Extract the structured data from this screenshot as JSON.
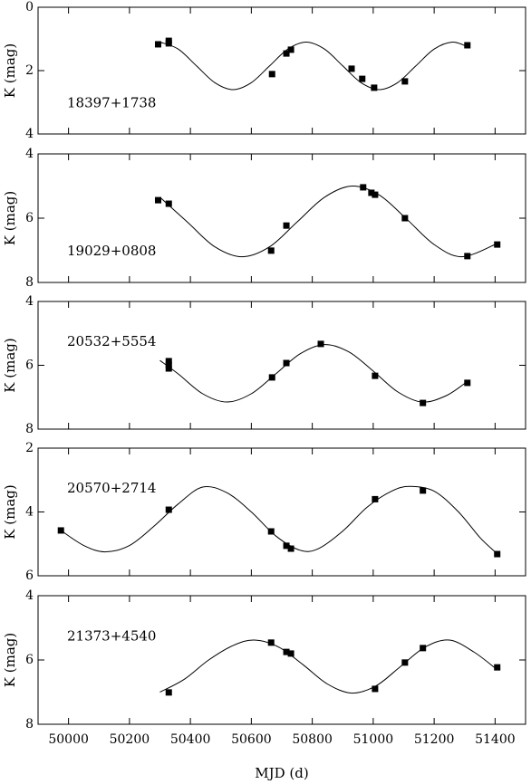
{
  "chart_data": [
    {
      "type": "scatter",
      "title": "18397+1738",
      "y_label": "K (mag)",
      "ylim": [
        0,
        4
      ],
      "y_inverted": true,
      "yticks": [
        0,
        2,
        4
      ],
      "points": {
        "x": [
          50294,
          50329,
          50329,
          50668,
          50715,
          50730,
          50929,
          50964,
          51003,
          51104,
          51309
        ],
        "values": [
          1.17,
          1.06,
          1.14,
          2.11,
          1.46,
          1.34,
          1.94,
          2.26,
          2.54,
          2.34,
          1.2
        ]
      },
      "curve": {
        "x": [
          50300,
          50360,
          50420,
          50480,
          50540,
          50600,
          50660,
          50720,
          50780,
          50840,
          50900,
          50960,
          51020,
          51080,
          51140,
          51200,
          51260,
          51310
        ],
        "values": [
          1.1,
          1.32,
          1.85,
          2.38,
          2.6,
          2.38,
          1.85,
          1.32,
          1.1,
          1.32,
          1.85,
          2.38,
          2.6,
          2.38,
          1.85,
          1.32,
          1.1,
          1.25
        ]
      }
    },
    {
      "type": "scatter",
      "title": "19029+0808",
      "y_label": "K (mag)",
      "ylim": [
        4,
        8
      ],
      "y_inverted": true,
      "yticks": [
        4,
        6,
        8
      ],
      "points": {
        "x": [
          50294,
          50329,
          50665,
          50715,
          50967,
          50994,
          51006,
          51104,
          51309,
          51407
        ],
        "values": [
          5.44,
          5.55,
          7.01,
          6.23,
          5.04,
          5.21,
          5.27,
          6.0,
          7.18,
          6.82
        ]
      },
      "curve": {
        "x": [
          50300,
          50390,
          50480,
          50570,
          50660,
          50750,
          50840,
          50930,
          51020,
          51110,
          51200,
          51290,
          51400
        ],
        "values": [
          5.35,
          6.12,
          6.89,
          7.2,
          6.89,
          6.12,
          5.35,
          5.0,
          5.28,
          6.03,
          6.82,
          7.2,
          6.82
        ]
      }
    },
    {
      "type": "scatter",
      "title": "20532+5554",
      "y_label": "K (mag)",
      "ylim": [
        4,
        8
      ],
      "y_inverted": true,
      "yticks": [
        4,
        6,
        8
      ],
      "points": {
        "x": [
          50329,
          50329,
          50329,
          50668,
          50715,
          50828,
          51006,
          51163,
          51309
        ],
        "values": [
          5.87,
          5.99,
          6.1,
          6.38,
          5.93,
          5.33,
          6.33,
          7.18,
          6.55
        ]
      },
      "curve": {
        "x": [
          50300,
          50360,
          50440,
          50520,
          50600,
          50680,
          50760,
          50840,
          50920,
          51000,
          51080,
          51160,
          51240,
          51310
        ],
        "values": [
          5.85,
          6.27,
          6.89,
          7.15,
          6.89,
          6.27,
          5.64,
          5.35,
          5.58,
          6.18,
          6.83,
          7.15,
          6.95,
          6.5
        ]
      }
    },
    {
      "type": "scatter",
      "title": "20570+2714",
      "y_label": "K (mag)",
      "ylim": [
        2,
        6
      ],
      "y_inverted": true,
      "yticks": [
        2,
        4,
        6
      ],
      "points": {
        "x": [
          49975,
          50329,
          50665,
          50715,
          50730,
          51006,
          51163,
          51407
        ],
        "values": [
          4.58,
          3.93,
          4.61,
          5.06,
          5.15,
          3.6,
          3.33,
          5.32
        ]
      },
      "curve": {
        "x": [
          49975,
          50050,
          50120,
          50200,
          50280,
          50360,
          50440,
          50520,
          50600,
          50680,
          50760,
          50820,
          50900,
          50980,
          51060,
          51120,
          51200,
          51280,
          51350,
          51400
        ],
        "values": [
          4.58,
          5.05,
          5.25,
          5.05,
          4.45,
          3.75,
          3.22,
          3.4,
          4.0,
          4.75,
          5.2,
          5.15,
          4.6,
          3.85,
          3.35,
          3.2,
          3.35,
          4.0,
          4.8,
          5.25
        ]
      }
    },
    {
      "type": "scatter",
      "title": "21373+4540",
      "y_label": "K (mag)",
      "ylim": [
        4,
        8
      ],
      "y_inverted": true,
      "yticks": [
        4,
        6,
        8
      ],
      "points": {
        "x": [
          50329,
          50665,
          50715,
          50730,
          51006,
          51104,
          51163,
          51407
        ],
        "values": [
          7.01,
          5.46,
          5.75,
          5.8,
          6.9,
          6.08,
          5.63,
          6.23
        ]
      },
      "curve": {
        "x": [
          50300,
          50380,
          50460,
          50540,
          50610,
          50690,
          50770,
          50850,
          50930,
          51010,
          51090,
          51170,
          51250,
          51330,
          51400
        ],
        "values": [
          7.0,
          6.6,
          6.0,
          5.55,
          5.38,
          5.6,
          6.15,
          6.75,
          7.03,
          6.8,
          6.2,
          5.6,
          5.38,
          5.75,
          6.25
        ]
      }
    }
  ],
  "x_axis": {
    "label": "MJD (d)",
    "xlim": [
      49900,
      51500
    ],
    "xticks": [
      50000,
      50200,
      50400,
      50600,
      50800,
      51000,
      51200,
      51400
    ]
  }
}
